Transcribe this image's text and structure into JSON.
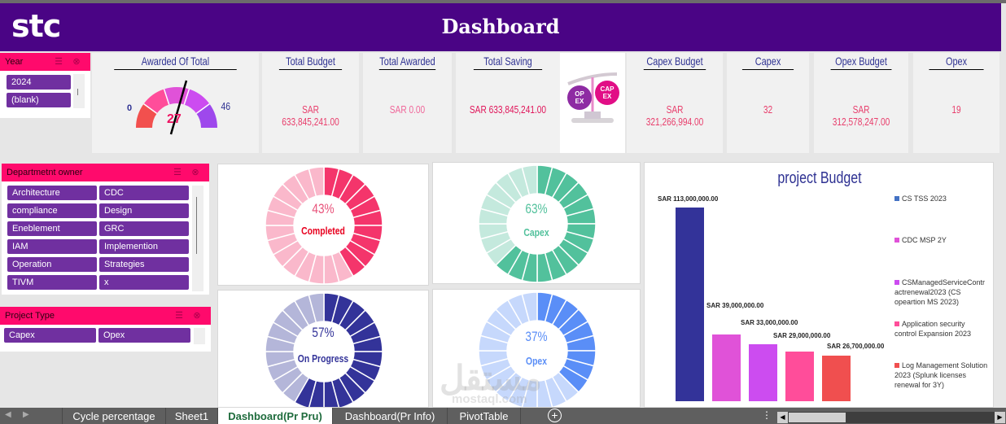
{
  "header": {
    "logo": "stc",
    "title": "Dashboard"
  },
  "slicers": {
    "year": {
      "title": "Year",
      "items": [
        "2024",
        "(blank)"
      ]
    },
    "department": {
      "title": "Departmetnt owner",
      "items": [
        "Architecture",
        "CDC",
        "compliance",
        "Design",
        "Eneblement",
        "GRC",
        "IAM",
        "Implemention",
        "Operation",
        "Strategies",
        "TIVM",
        "x"
      ]
    },
    "project_type": {
      "title": "Project Type",
      "items": [
        "Capex",
        "Opex"
      ]
    }
  },
  "gauge": {
    "title": "Awarded Of Total",
    "min": "0",
    "max": "46",
    "value": "27"
  },
  "kpis": [
    {
      "title": "Total Budget",
      "value": "SAR 633,845,241.00"
    },
    {
      "title": "Total Awarded",
      "value": "SAR 0.00"
    },
    {
      "title": "Total Saving",
      "value": "SAR 633,845,241.00"
    },
    {
      "title": "Capex Budget",
      "value": "SAR 321,266,994.00"
    },
    {
      "title": "Capex",
      "value": "32"
    },
    {
      "title": "Opex Budget",
      "value": "SAR 312,578,247.00"
    },
    {
      "title": "Opex",
      "value": "19"
    }
  ],
  "scale_icon": {
    "left": "OP EX",
    "right": "CAP EX"
  },
  "donuts": [
    {
      "pct": "43%",
      "label": "Completed",
      "value": 43,
      "color": "#f4356b",
      "light": "#fab8cb",
      "pct_color": "#e8527a",
      "label_color": "#e8001f"
    },
    {
      "pct": "63%",
      "label": "Capex",
      "value": 63,
      "color": "#52c19c",
      "light": "#c4e9dd",
      "pct_color": "#52c19c",
      "label_color": "#52c19c"
    },
    {
      "pct": "57%",
      "label": "On Progress",
      "value": 57,
      "color": "#333399",
      "light": "#b4b6d9",
      "pct_color": "#333399",
      "label_color": "#333399"
    },
    {
      "pct": "37%",
      "label": "Opex",
      "value": 37,
      "color": "#5a8ef7",
      "light": "#c6d8fc",
      "pct_color": "#5a8ef7",
      "label_color": "#5a8ef7"
    }
  ],
  "chart_data": {
    "type": "bar",
    "title": "project Budget",
    "categories": [
      "CS TSS 2023",
      "CDC MSP 2Y",
      "CSManagedServiceContractrenewal2023 (CS opeartion MS 2023)",
      "Application security control Expansion 2023",
      "Log Management Solution 2023 (Splunk licenses renewal for 3Y)"
    ],
    "values": [
      113000000,
      39000000,
      33000000,
      29000000,
      26700000
    ],
    "value_labels": [
      "SAR 113,000,000.00",
      "SAR 39,000,000.00",
      "SAR 33,000,000.00",
      "SAR 29,000,000.00",
      "SAR 26,700,000.00"
    ],
    "colors": [
      "#333399",
      "#e052d8",
      "#cc4cf0",
      "#ff4d9a",
      "#f04f4f"
    ],
    "legend": [
      "CS TSS 2023",
      "CDC MSP 2Y",
      "CSManagedServiceContr actrenewal2023 (CS opeartion MS 2023)",
      "Application security control Expansion 2023",
      "Log Management Solution 2023 (Splunk licenses renewal for 3Y)"
    ],
    "legend_colors": [
      "#4472c4",
      "#e052d8",
      "#cc4cf0",
      "#ff4d9a",
      "#f04f4f"
    ],
    "xlabel": "",
    "ylabel": "",
    "grid": false,
    "legend_position": "right"
  },
  "tabs": [
    "Cycle percentage",
    "Sheet1",
    "Dashboard(Pr Pru)",
    "Dashboard(Pr Info)",
    "PivotTable"
  ],
  "active_tab": "Dashboard(Pr Pru)",
  "watermark": {
    "arabic": "مستقل",
    "latin": "mostaql.com"
  }
}
